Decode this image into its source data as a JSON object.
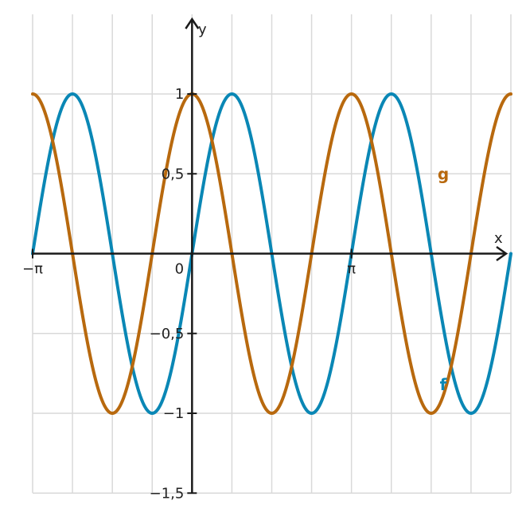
{
  "chart_data": {
    "type": "line",
    "title": "",
    "xlabel": "x",
    "ylabel": "y",
    "xlim": [
      -3.14159,
      6.28319
    ],
    "ylim": [
      -1.5,
      1.5
    ],
    "grid": true,
    "x_grid_step": 0.785398,
    "y_grid_step": 0.5,
    "x_ticks": [
      {
        "value": -3.14159,
        "label": "−π"
      },
      {
        "value": 0,
        "label": "0"
      },
      {
        "value": 3.14159,
        "label": "π"
      }
    ],
    "y_ticks": [
      {
        "value": 1,
        "label": "1"
      },
      {
        "value": 0.5,
        "label": "0,5"
      },
      {
        "value": -0.5,
        "label": "−0,5"
      },
      {
        "value": -1,
        "label": "−1"
      },
      {
        "value": -1.5,
        "label": "−1,5"
      }
    ],
    "series": [
      {
        "name": "f",
        "function": "sin(2x)",
        "color": "#0a87b5",
        "label_at": [
          4.95,
          -0.82
        ]
      },
      {
        "name": "g",
        "function": "cos(2x)",
        "color": "#b8690e",
        "label_at": [
          4.95,
          0.5
        ]
      }
    ]
  }
}
